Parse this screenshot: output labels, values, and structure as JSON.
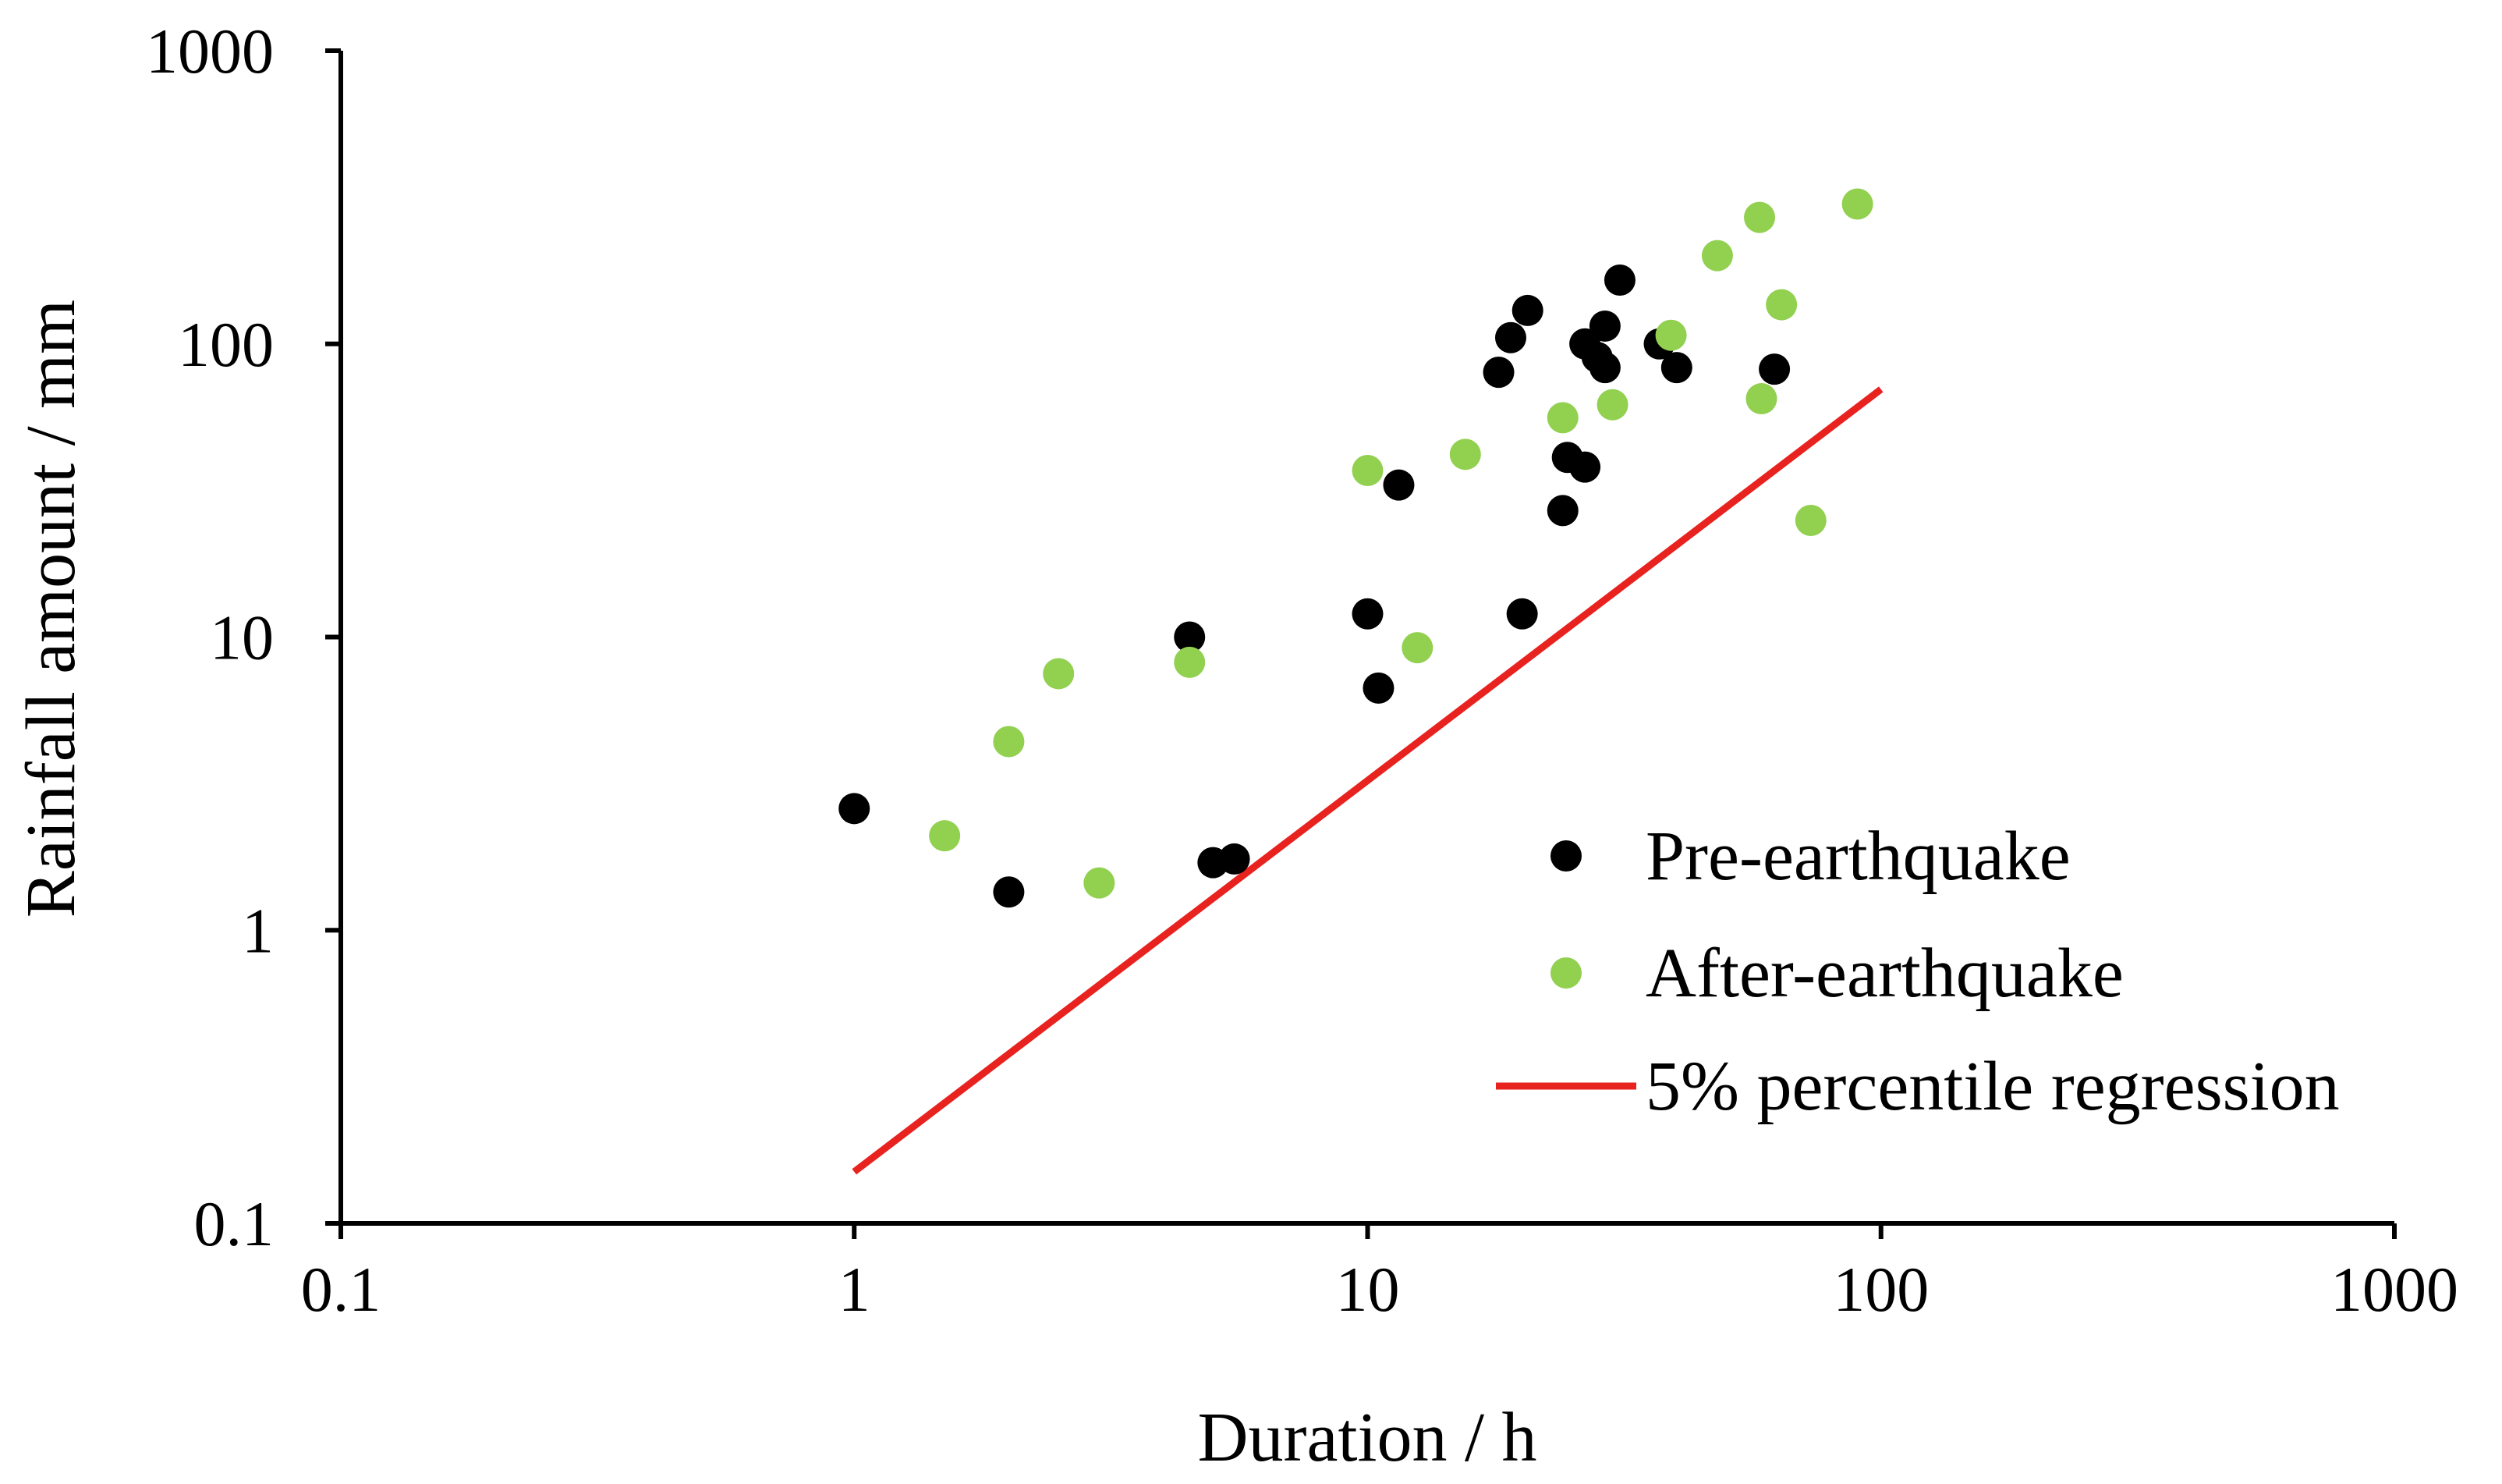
{
  "chart_data": {
    "type": "scatter",
    "title": "",
    "xlabel": "Duration / h",
    "ylabel": "Rainfall amount / mm",
    "xscale": "log",
    "yscale": "log",
    "xlim": [
      0.1,
      1000
    ],
    "ylim": [
      0.1,
      1000
    ],
    "xticks": [
      {
        "value": 0.1,
        "label": "0.1"
      },
      {
        "value": 1,
        "label": "1"
      },
      {
        "value": 10,
        "label": "10"
      },
      {
        "value": 100,
        "label": "100"
      },
      {
        "value": 1000,
        "label": "1000"
      }
    ],
    "yticks": [
      {
        "value": 0.1,
        "label": "0.1"
      },
      {
        "value": 1,
        "label": "1"
      },
      {
        "value": 10,
        "label": "10"
      },
      {
        "value": 100,
        "label": "100"
      },
      {
        "value": 1000,
        "label": "1000"
      }
    ],
    "grid": false,
    "legend_position": "bottom-right",
    "series": [
      {
        "name": "Pre-earthquake",
        "kind": "scatter",
        "color": "#000000",
        "points": [
          {
            "x": 1.0,
            "y": 2.6
          },
          {
            "x": 2.0,
            "y": 1.35
          },
          {
            "x": 4.5,
            "y": 10.0
          },
          {
            "x": 5.0,
            "y": 1.7
          },
          {
            "x": 5.5,
            "y": 1.75
          },
          {
            "x": 10.0,
            "y": 12.0
          },
          {
            "x": 10.5,
            "y": 6.7
          },
          {
            "x": 11.5,
            "y": 33.0
          },
          {
            "x": 18.0,
            "y": 80.0
          },
          {
            "x": 19.0,
            "y": 105.0
          },
          {
            "x": 20.0,
            "y": 12.0
          },
          {
            "x": 20.5,
            "y": 130.0
          },
          {
            "x": 24.0,
            "y": 27.0
          },
          {
            "x": 24.5,
            "y": 41.0
          },
          {
            "x": 26.5,
            "y": 38.0
          },
          {
            "x": 26.5,
            "y": 100.0
          },
          {
            "x": 28.0,
            "y": 90.0
          },
          {
            "x": 29.0,
            "y": 115.0
          },
          {
            "x": 29.0,
            "y": 83.0
          },
          {
            "x": 31.0,
            "y": 165.0
          },
          {
            "x": 37.0,
            "y": 100.0
          },
          {
            "x": 40.0,
            "y": 83.0
          },
          {
            "x": 62.0,
            "y": 82.0
          }
        ]
      },
      {
        "name": "After-earthquake",
        "kind": "scatter",
        "color": "#92d050",
        "points": [
          {
            "x": 1.5,
            "y": 2.1
          },
          {
            "x": 2.0,
            "y": 4.4
          },
          {
            "x": 2.5,
            "y": 7.5
          },
          {
            "x": 3.0,
            "y": 1.45
          },
          {
            "x": 4.5,
            "y": 8.2
          },
          {
            "x": 10.0,
            "y": 37.0
          },
          {
            "x": 12.5,
            "y": 9.2
          },
          {
            "x": 15.5,
            "y": 42.0
          },
          {
            "x": 24.0,
            "y": 56.0
          },
          {
            "x": 30.0,
            "y": 62.0
          },
          {
            "x": 39.0,
            "y": 107.0
          },
          {
            "x": 48.0,
            "y": 200.0
          },
          {
            "x": 58.0,
            "y": 270.0
          },
          {
            "x": 58.5,
            "y": 65.0
          },
          {
            "x": 64.0,
            "y": 136.0
          },
          {
            "x": 73.0,
            "y": 25.0
          },
          {
            "x": 90.0,
            "y": 300.0
          }
        ]
      },
      {
        "name": "5% percentile regression",
        "kind": "line",
        "color": "#e8221f",
        "points": [
          {
            "x": 1.0,
            "y": 0.15
          },
          {
            "x": 100.0,
            "y": 70.0
          }
        ]
      }
    ]
  }
}
